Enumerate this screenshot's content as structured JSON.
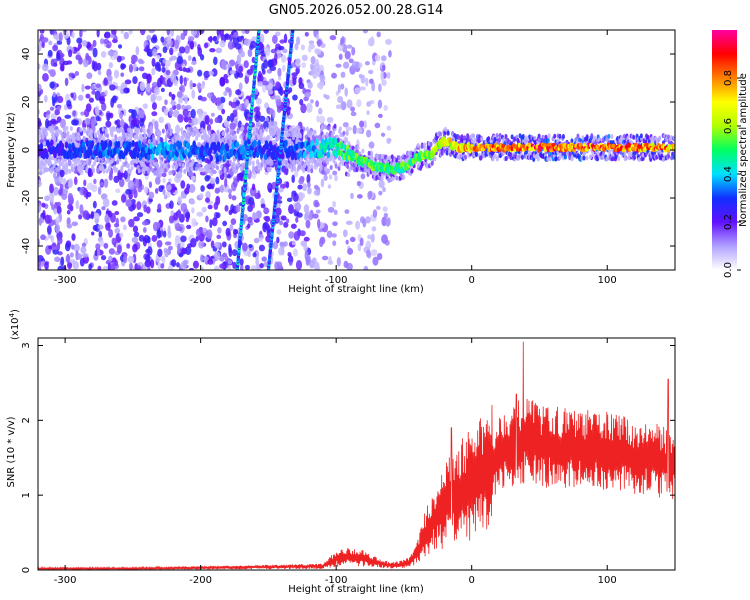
{
  "title": "GN05.2026.052.00.28.G14",
  "colors": {
    "snr_line": "#ee2222",
    "frame": "#000000"
  },
  "chart_data": [
    {
      "type": "heatmap",
      "xlabel": "Height of straight line (km)",
      "ylabel": "Frequency (Hz)",
      "xlim": [
        -320,
        150
      ],
      "ylim": [
        -50,
        50
      ],
      "xticks": [
        -300,
        -200,
        -100,
        0,
        100
      ],
      "xtick_labels": [
        "-300",
        "-200",
        "-100",
        "0",
        "100"
      ],
      "yticks": [
        -40,
        -20,
        0,
        20,
        40
      ],
      "ytick_labels": [
        "-40",
        "-20",
        "0",
        "20",
        "40"
      ],
      "colorbar": {
        "label": "Normalized spectral amplitude",
        "range": [
          0,
          1
        ],
        "ticks": [
          0,
          0.2,
          0.4,
          0.6,
          0.8
        ],
        "tick_labels": [
          "0.0",
          "0.2",
          "0.4",
          "0.6",
          "0.8"
        ],
        "colormap": [
          "#ffffff",
          "#b0a0ff",
          "#6010ff",
          "#1030ff",
          "#00e0ff",
          "#00ff60",
          "#b0ff00",
          "#ffff00",
          "#ff8000",
          "#ff0000",
          "#ff00a0"
        ]
      },
      "ridge": [
        [
          -320,
          0,
          0.25
        ],
        [
          -290,
          0,
          0.3
        ],
        [
          -270,
          0,
          0.35
        ],
        [
          -250,
          0,
          0.3
        ],
        [
          -230,
          -1,
          0.4
        ],
        [
          -210,
          0,
          0.35
        ],
        [
          -190,
          -1,
          0.3
        ],
        [
          -170,
          0,
          0.35
        ],
        [
          -150,
          0,
          0.3
        ],
        [
          -130,
          0,
          0.3
        ],
        [
          -120,
          0,
          0.4
        ],
        [
          -110,
          1,
          0.45
        ],
        [
          -100,
          1,
          0.5
        ],
        [
          -90,
          -2,
          0.55
        ],
        [
          -80,
          -5,
          0.55
        ],
        [
          -70,
          -7,
          0.55
        ],
        [
          -60,
          -8,
          0.55
        ],
        [
          -50,
          -7,
          0.55
        ],
        [
          -40,
          -3,
          0.55
        ],
        [
          -30,
          -2,
          0.6
        ],
        [
          -25,
          2,
          0.65
        ],
        [
          -20,
          4,
          0.7
        ],
        [
          -10,
          1,
          0.75
        ],
        [
          0,
          1,
          0.8
        ],
        [
          20,
          1,
          0.85
        ],
        [
          40,
          1,
          0.88
        ],
        [
          60,
          1,
          0.9
        ],
        [
          80,
          1,
          0.9
        ],
        [
          100,
          1,
          0.88
        ],
        [
          120,
          1,
          0.85
        ],
        [
          150,
          1,
          0.82
        ]
      ],
      "streaks": [
        {
          "from": [
            -173,
            -50
          ],
          "to": [
            -157,
            50
          ],
          "amplitude": 0.35
        },
        {
          "from": [
            -150,
            -50
          ],
          "to": [
            -132,
            50
          ],
          "amplitude": 0.3
        }
      ]
    },
    {
      "type": "line",
      "xlabel": "Height of straight line (km)",
      "ylabel": "SNR (10 * v/v)",
      "y_multiplier": "(x10",
      "y_multiplier_exp": "4",
      "y_multiplier_close": ")",
      "xlim": [
        -320,
        150
      ],
      "ylim": [
        0,
        3.1
      ],
      "xticks": [
        -300,
        -200,
        -100,
        0,
        100
      ],
      "xtick_labels": [
        "-300",
        "-200",
        "-100",
        "0",
        "100"
      ],
      "yticks": [
        0,
        1,
        2,
        3
      ],
      "ytick_labels": [
        "0",
        "1",
        "2",
        "3"
      ],
      "envelope": {
        "x": [
          -320,
          -250,
          -200,
          -150,
          -110,
          -100,
          -90,
          -80,
          -70,
          -60,
          -50,
          -45,
          -40,
          -35,
          -30,
          -25,
          -20,
          -15,
          -10,
          -5,
          0,
          5,
          10,
          15,
          20,
          25,
          30,
          35,
          40,
          45,
          50,
          60,
          70,
          80,
          90,
          100,
          110,
          120,
          130,
          140,
          150
        ],
        "y": [
          0.02,
          0.02,
          0.03,
          0.04,
          0.05,
          0.15,
          0.18,
          0.16,
          0.1,
          0.06,
          0.08,
          0.12,
          0.25,
          0.45,
          0.6,
          0.75,
          0.85,
          0.95,
          1.0,
          1.1,
          1.15,
          1.2,
          1.3,
          1.45,
          1.55,
          1.65,
          1.65,
          1.7,
          1.75,
          1.7,
          1.65,
          1.65,
          1.62,
          1.6,
          1.6,
          1.6,
          1.55,
          1.5,
          1.5,
          1.45,
          1.4
        ]
      },
      "peaks": [
        {
          "x": 38,
          "y": 3.05
        },
        {
          "x": 33,
          "y": 2.35
        },
        {
          "x": 145,
          "y": 2.55
        },
        {
          "x": -15,
          "y": 1.9
        }
      ]
    }
  ]
}
